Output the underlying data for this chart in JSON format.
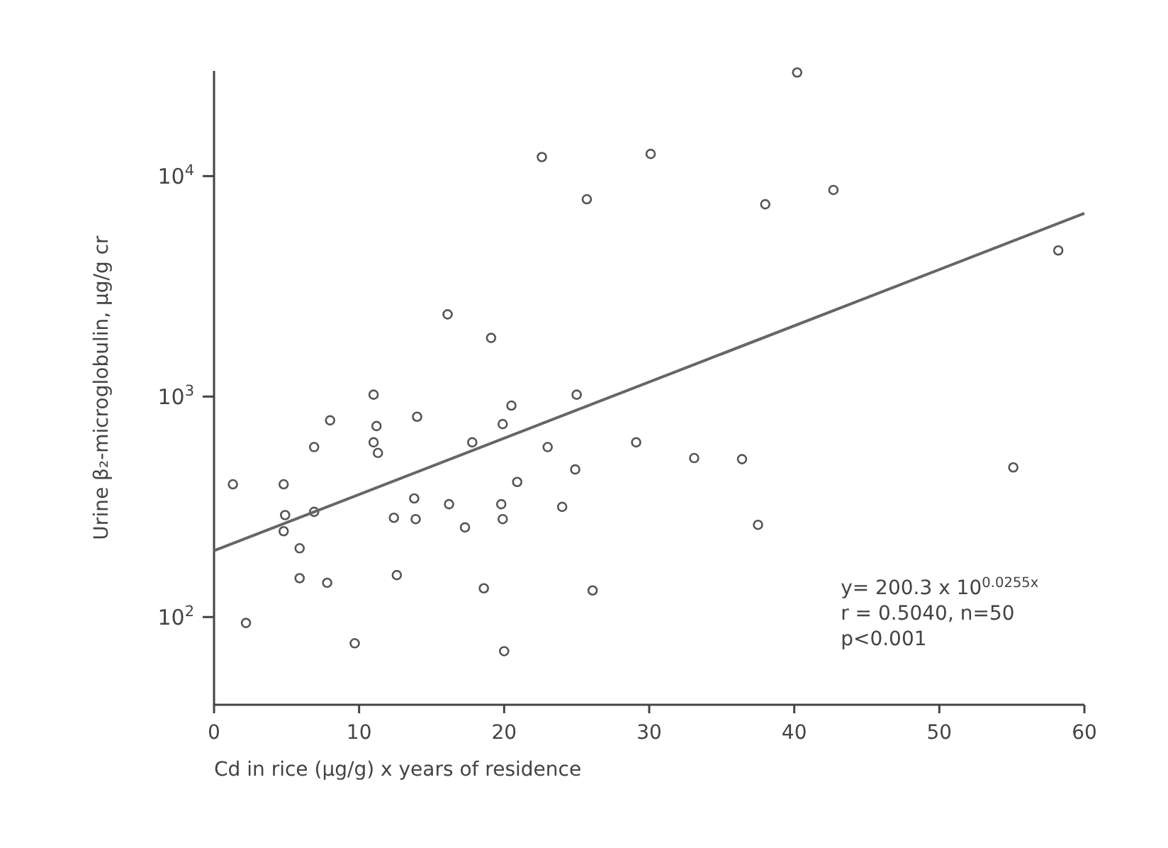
{
  "chart_data": {
    "type": "scatter",
    "xlabel": "Cd in rice (μg/g) x years of residence",
    "ylabel": "Urine β₂-microglobulin, μg/g cr",
    "log": "y",
    "xlim": [
      0,
      60
    ],
    "ylim": [
      40,
      30000
    ],
    "xticks": [
      0,
      10,
      20,
      30,
      40,
      50,
      60
    ],
    "yticks": [
      {
        "value": 100,
        "label": "10$^{2}$"
      },
      {
        "value": 1000,
        "label": "10$^{3}$"
      },
      {
        "value": 10000,
        "label": "10$^{4}$"
      }
    ],
    "grid": false,
    "marker": "circle",
    "series": [
      {
        "color": "#555555",
        "x": [
          40.2,
          22.6,
          30.1,
          25.7,
          38.0,
          42.7,
          58.2,
          16.1,
          19.1,
          11.0,
          25.0,
          20.5,
          8.0,
          14.0,
          11.2,
          19.9,
          6.9,
          11.0,
          11.3,
          17.8,
          1.3,
          4.8,
          20.9,
          13.8,
          16.2,
          19.8,
          4.9,
          6.9,
          12.4,
          13.9,
          19.9,
          4.8,
          17.3,
          5.9,
          5.9,
          12.6,
          7.8,
          18.6,
          2.2,
          9.7,
          20.0,
          23.0,
          29.1,
          24.9,
          33.1,
          36.4,
          55.1,
          24.0,
          37.5,
          26.1
        ],
        "values": [
          29500,
          12200,
          12600,
          7850,
          7450,
          8650,
          4600,
          2360,
          1845,
          1020,
          1020,
          910,
          780,
          810,
          735,
          750,
          590,
          620,
          555,
          620,
          400,
          400,
          410,
          345,
          325,
          325,
          290,
          300,
          282,
          278,
          278,
          245,
          255,
          205,
          150,
          155,
          143,
          135,
          94,
          76,
          70,
          590,
          620,
          467,
          526,
          520,
          477,
          316,
          262,
          132
        ]
      },
      {
        "type": "line",
        "color": "#666666",
        "line_style": "solid",
        "marker": "none",
        "x": [
          0,
          60
        ],
        "values": [
          200,
          6780
        ]
      }
    ],
    "annotations": [
      "y= 200.3 x 10$^{0.0255x}$",
      "r = 0.5040, n=50",
      "p<0.001"
    ]
  }
}
